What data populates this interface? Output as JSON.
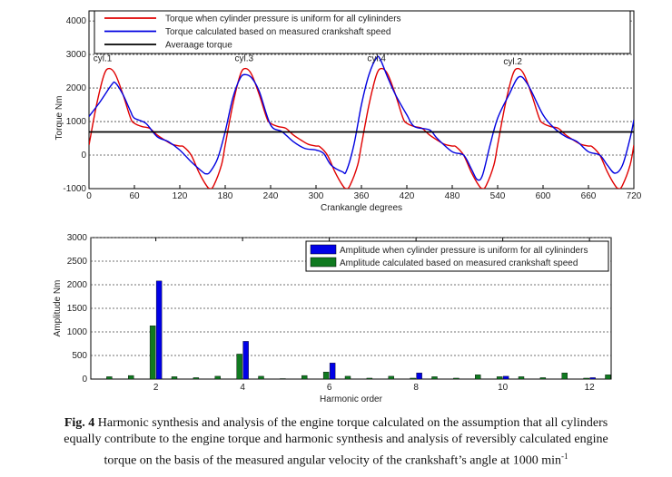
{
  "caption": {
    "label": "Fig. 4",
    "text_line1": "Harmonic synthesis and analysis of the engine torque calculated on the assumption that all cylinders",
    "text_line2": "equally contribute to the engine torque and harmonic synthesis and analysis of reversibly calculated engine",
    "text_line3": "torque on the basis of the measured angular velocity of the crankshaft’s angle at 1000 min",
    "superscript": "-1"
  },
  "chart_data": [
    {
      "type": "line",
      "title": "",
      "xlabel": "Crankangle degrees",
      "ylabel": "Torque Nm",
      "xlim": [
        0,
        720
      ],
      "ylim": [
        -1000,
        4300
      ],
      "xticks": [
        0,
        60,
        120,
        180,
        240,
        300,
        360,
        420,
        480,
        540,
        600,
        660,
        720
      ],
      "yticks": [
        -1000,
        0,
        1000,
        2000,
        3000,
        4000
      ],
      "grid": "horizontal dotted",
      "legend_position": "top",
      "annotations": [
        {
          "text": "cyl.1",
          "x": 18,
          "y": 2800
        },
        {
          "text": "cyl.3",
          "x": 205,
          "y": 2800
        },
        {
          "text": "cyl.4",
          "x": 380,
          "y": 2800
        },
        {
          "text": "cyl.2",
          "x": 560,
          "y": 2700
        }
      ],
      "series": [
        {
          "name": "Torque when cylinder pressure is uniform for all cylininders",
          "color": "#e00000",
          "x": [
            0,
            10,
            20,
            27,
            35,
            45,
            55,
            60,
            70,
            80,
            90,
            100,
            110,
            120,
            125,
            135,
            145,
            155,
            160,
            165,
            175,
            180
          ],
          "y": [
            300,
            1500,
            2400,
            2580,
            2400,
            1800,
            1100,
            950,
            850,
            800,
            600,
            450,
            320,
            270,
            250,
            0,
            -500,
            -900,
            -1000,
            -900,
            -300,
            300
          ],
          "periodic": 180
        },
        {
          "name": "Torque calculated based on measured crankshaft speed",
          "color": "#0000e0",
          "x": [
            0,
            15,
            30,
            35,
            45,
            55,
            60,
            75,
            90,
            105,
            120,
            135,
            150,
            155,
            160,
            170,
            180,
            190,
            200,
            207,
            215,
            225,
            240,
            255,
            270,
            285,
            300,
            310,
            320,
            335,
            340,
            350,
            360,
            370,
            380,
            385,
            395,
            405,
            420,
            430,
            450,
            460,
            480,
            495,
            505,
            513,
            520,
            530,
            540,
            555,
            568,
            580,
            600,
            615,
            630,
            645,
            660,
            675,
            685,
            695,
            705,
            715,
            720
          ],
          "y": [
            1150,
            1600,
            2100,
            2150,
            1800,
            1300,
            1100,
            950,
            550,
            400,
            150,
            -200,
            -500,
            -560,
            -500,
            -100,
            700,
            1700,
            2300,
            2400,
            2300,
            1900,
            900,
            700,
            400,
            200,
            150,
            50,
            -300,
            -500,
            -480,
            300,
            1500,
            2400,
            2900,
            2850,
            2300,
            1800,
            1200,
            850,
            750,
            500,
            100,
            0,
            -400,
            -730,
            -600,
            300,
            1100,
            1800,
            2330,
            2100,
            1200,
            800,
            550,
            400,
            100,
            0,
            -300,
            -540,
            -300,
            500,
            1050
          ]
        },
        {
          "name": "Averaage torque",
          "color": "#000000",
          "x": [
            0,
            720
          ],
          "y": [
            690,
            690
          ]
        }
      ]
    },
    {
      "type": "bar",
      "title": "",
      "xlabel": "Harmonic order",
      "ylabel": "Amplitude Nm",
      "xlim": [
        0.5,
        12.5
      ],
      "ylim": [
        0,
        3000
      ],
      "xticks": [
        2,
        4,
        6,
        8,
        10,
        12
      ],
      "yticks": [
        0,
        500,
        1000,
        1500,
        2000,
        2500,
        3000
      ],
      "grid": "horizontal dotted",
      "legend_position": "top-right",
      "series": [
        {
          "name": "Amplitude when cylinder pressure is uniform for all cylininders",
          "color": "#0000e6",
          "x": [
            2,
            4,
            6,
            8,
            10,
            12
          ],
          "values": [
            2080,
            800,
            340,
            130,
            60,
            30
          ]
        },
        {
          "name": "Amplitude calculated based on measured crankshaft speed",
          "color": "#107a20",
          "x": [
            1,
            1.5,
            2,
            2.5,
            3,
            3.5,
            4,
            4.5,
            5,
            5.5,
            6,
            6.5,
            7,
            7.5,
            8,
            8.5,
            9,
            9.5,
            10,
            10.5,
            11,
            11.5,
            12,
            12.5
          ],
          "values": [
            50,
            75,
            1130,
            50,
            30,
            60,
            530,
            60,
            10,
            75,
            150,
            60,
            20,
            60,
            20,
            50,
            20,
            90,
            50,
            50,
            30,
            130,
            20,
            90
          ]
        }
      ]
    }
  ]
}
